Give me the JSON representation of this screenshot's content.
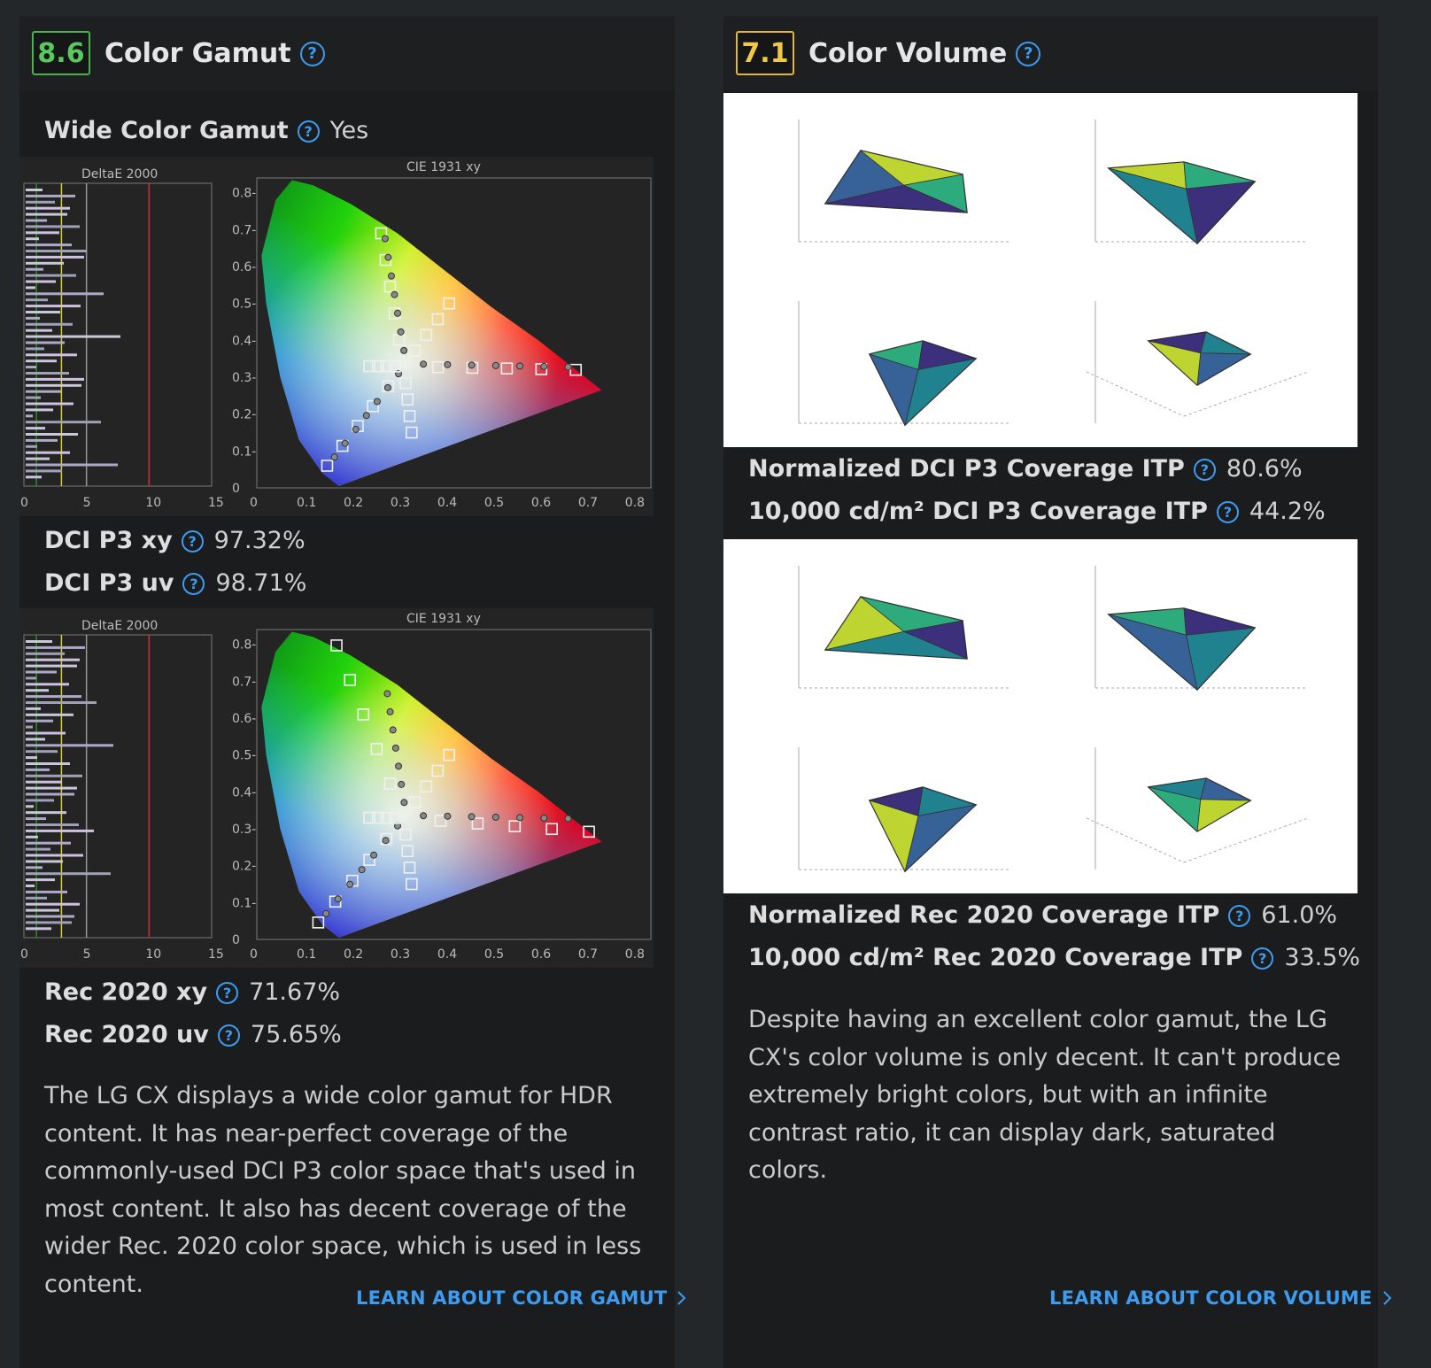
{
  "color_gamut": {
    "score": "8.6",
    "title": "Color Gamut",
    "score_color": "#4caf50",
    "wide_color_gamut_label": "Wide Color Gamut",
    "wide_color_gamut_value": "Yes",
    "chart_deltae_title": "DeltaE 2000",
    "chart_cie_title": "CIE 1931 xy",
    "deltae_ticks": [
      "0",
      "5",
      "10",
      "15"
    ],
    "cie_x_ticks": [
      "0",
      "0.1",
      "0.2",
      "0.3",
      "0.4",
      "0.5",
      "0.6",
      "0.7",
      "0.8"
    ],
    "cie_y_ticks": [
      "0",
      "0.1-",
      "0.2-",
      "0.3-",
      "0.4-",
      "0.5-",
      "0.6-",
      "0.7-",
      "0.8-"
    ],
    "dci_xy_label": "DCI P3 xy",
    "dci_xy_value": "97.32%",
    "dci_uv_label": "DCI P3 uv",
    "dci_uv_value": "98.71%",
    "rec_xy_label": "Rec 2020 xy",
    "rec_xy_value": "71.67%",
    "rec_uv_label": "Rec 2020 uv",
    "rec_uv_value": "75.65%",
    "description": "The LG CX displays a wide color gamut for HDR content. It has near-perfect coverage of the commonly-used DCI P3 color space that's used in most content. It also has decent coverage of the wider Rec. 2020 color space, which is used in less content.",
    "learn_link": "LEARN ABOUT COLOR GAMUT"
  },
  "color_volume": {
    "score": "7.1",
    "title": "Color Volume",
    "score_color": "#e0b53a",
    "norm_dci_label": "Normalized DCI P3 Coverage ITP",
    "norm_dci_value": "80.6%",
    "abs_dci_label": "10,000 cd/m² DCI P3 Coverage ITP",
    "abs_dci_value": "44.2%",
    "norm_rec_label": "Normalized Rec 2020 Coverage ITP",
    "norm_rec_value": "61.0%",
    "abs_rec_label": "10,000 cd/m² Rec 2020 Coverage ITP",
    "abs_rec_value": "33.5%",
    "description": "Despite having an excellent color gamut, the LG CX's color volume is only decent. It can't produce extremely bright colors, but with an infinite contrast ratio, it can display dark, saturated colors.",
    "learn_link": "LEARN ABOUT COLOR VOLUME"
  },
  "icons": {
    "help": "question-circle-icon",
    "chevron": "chevron-right-icon"
  },
  "colors": {
    "accent_blue": "#3d9bf0",
    "card_bg": "#1b1c1e",
    "page_bg": "#24272a"
  }
}
